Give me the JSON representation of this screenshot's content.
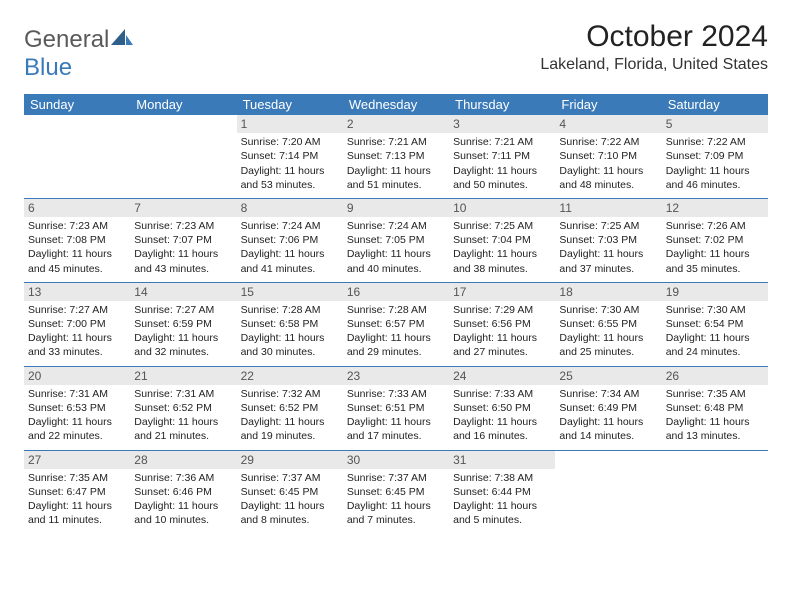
{
  "logo": {
    "text1": "General",
    "text2": "Blue"
  },
  "title": "October 2024",
  "location": "Lakeland, Florida, United States",
  "colors": {
    "header_bg": "#3a7ab8",
    "header_fg": "#ffffff",
    "daynum_bg": "#e9e9e9",
    "border": "#3a7ab8",
    "logo_gray": "#5a5a5a",
    "logo_blue": "#3a7ab8"
  },
  "day_names": [
    "Sunday",
    "Monday",
    "Tuesday",
    "Wednesday",
    "Thursday",
    "Friday",
    "Saturday"
  ],
  "weeks": [
    [
      {
        "n": "",
        "lines": []
      },
      {
        "n": "",
        "lines": []
      },
      {
        "n": "1",
        "lines": [
          "Sunrise: 7:20 AM",
          "Sunset: 7:14 PM",
          "Daylight: 11 hours and 53 minutes."
        ]
      },
      {
        "n": "2",
        "lines": [
          "Sunrise: 7:21 AM",
          "Sunset: 7:13 PM",
          "Daylight: 11 hours and 51 minutes."
        ]
      },
      {
        "n": "3",
        "lines": [
          "Sunrise: 7:21 AM",
          "Sunset: 7:11 PM",
          "Daylight: 11 hours and 50 minutes."
        ]
      },
      {
        "n": "4",
        "lines": [
          "Sunrise: 7:22 AM",
          "Sunset: 7:10 PM",
          "Daylight: 11 hours and 48 minutes."
        ]
      },
      {
        "n": "5",
        "lines": [
          "Sunrise: 7:22 AM",
          "Sunset: 7:09 PM",
          "Daylight: 11 hours and 46 minutes."
        ]
      }
    ],
    [
      {
        "n": "6",
        "lines": [
          "Sunrise: 7:23 AM",
          "Sunset: 7:08 PM",
          "Daylight: 11 hours and 45 minutes."
        ]
      },
      {
        "n": "7",
        "lines": [
          "Sunrise: 7:23 AM",
          "Sunset: 7:07 PM",
          "Daylight: 11 hours and 43 minutes."
        ]
      },
      {
        "n": "8",
        "lines": [
          "Sunrise: 7:24 AM",
          "Sunset: 7:06 PM",
          "Daylight: 11 hours and 41 minutes."
        ]
      },
      {
        "n": "9",
        "lines": [
          "Sunrise: 7:24 AM",
          "Sunset: 7:05 PM",
          "Daylight: 11 hours and 40 minutes."
        ]
      },
      {
        "n": "10",
        "lines": [
          "Sunrise: 7:25 AM",
          "Sunset: 7:04 PM",
          "Daylight: 11 hours and 38 minutes."
        ]
      },
      {
        "n": "11",
        "lines": [
          "Sunrise: 7:25 AM",
          "Sunset: 7:03 PM",
          "Daylight: 11 hours and 37 minutes."
        ]
      },
      {
        "n": "12",
        "lines": [
          "Sunrise: 7:26 AM",
          "Sunset: 7:02 PM",
          "Daylight: 11 hours and 35 minutes."
        ]
      }
    ],
    [
      {
        "n": "13",
        "lines": [
          "Sunrise: 7:27 AM",
          "Sunset: 7:00 PM",
          "Daylight: 11 hours and 33 minutes."
        ]
      },
      {
        "n": "14",
        "lines": [
          "Sunrise: 7:27 AM",
          "Sunset: 6:59 PM",
          "Daylight: 11 hours and 32 minutes."
        ]
      },
      {
        "n": "15",
        "lines": [
          "Sunrise: 7:28 AM",
          "Sunset: 6:58 PM",
          "Daylight: 11 hours and 30 minutes."
        ]
      },
      {
        "n": "16",
        "lines": [
          "Sunrise: 7:28 AM",
          "Sunset: 6:57 PM",
          "Daylight: 11 hours and 29 minutes."
        ]
      },
      {
        "n": "17",
        "lines": [
          "Sunrise: 7:29 AM",
          "Sunset: 6:56 PM",
          "Daylight: 11 hours and 27 minutes."
        ]
      },
      {
        "n": "18",
        "lines": [
          "Sunrise: 7:30 AM",
          "Sunset: 6:55 PM",
          "Daylight: 11 hours and 25 minutes."
        ]
      },
      {
        "n": "19",
        "lines": [
          "Sunrise: 7:30 AM",
          "Sunset: 6:54 PM",
          "Daylight: 11 hours and 24 minutes."
        ]
      }
    ],
    [
      {
        "n": "20",
        "lines": [
          "Sunrise: 7:31 AM",
          "Sunset: 6:53 PM",
          "Daylight: 11 hours and 22 minutes."
        ]
      },
      {
        "n": "21",
        "lines": [
          "Sunrise: 7:31 AM",
          "Sunset: 6:52 PM",
          "Daylight: 11 hours and 21 minutes."
        ]
      },
      {
        "n": "22",
        "lines": [
          "Sunrise: 7:32 AM",
          "Sunset: 6:52 PM",
          "Daylight: 11 hours and 19 minutes."
        ]
      },
      {
        "n": "23",
        "lines": [
          "Sunrise: 7:33 AM",
          "Sunset: 6:51 PM",
          "Daylight: 11 hours and 17 minutes."
        ]
      },
      {
        "n": "24",
        "lines": [
          "Sunrise: 7:33 AM",
          "Sunset: 6:50 PM",
          "Daylight: 11 hours and 16 minutes."
        ]
      },
      {
        "n": "25",
        "lines": [
          "Sunrise: 7:34 AM",
          "Sunset: 6:49 PM",
          "Daylight: 11 hours and 14 minutes."
        ]
      },
      {
        "n": "26",
        "lines": [
          "Sunrise: 7:35 AM",
          "Sunset: 6:48 PM",
          "Daylight: 11 hours and 13 minutes."
        ]
      }
    ],
    [
      {
        "n": "27",
        "lines": [
          "Sunrise: 7:35 AM",
          "Sunset: 6:47 PM",
          "Daylight: 11 hours and 11 minutes."
        ]
      },
      {
        "n": "28",
        "lines": [
          "Sunrise: 7:36 AM",
          "Sunset: 6:46 PM",
          "Daylight: 11 hours and 10 minutes."
        ]
      },
      {
        "n": "29",
        "lines": [
          "Sunrise: 7:37 AM",
          "Sunset: 6:45 PM",
          "Daylight: 11 hours and 8 minutes."
        ]
      },
      {
        "n": "30",
        "lines": [
          "Sunrise: 7:37 AM",
          "Sunset: 6:45 PM",
          "Daylight: 11 hours and 7 minutes."
        ]
      },
      {
        "n": "31",
        "lines": [
          "Sunrise: 7:38 AM",
          "Sunset: 6:44 PM",
          "Daylight: 11 hours and 5 minutes."
        ]
      },
      {
        "n": "",
        "lines": []
      },
      {
        "n": "",
        "lines": []
      }
    ]
  ]
}
